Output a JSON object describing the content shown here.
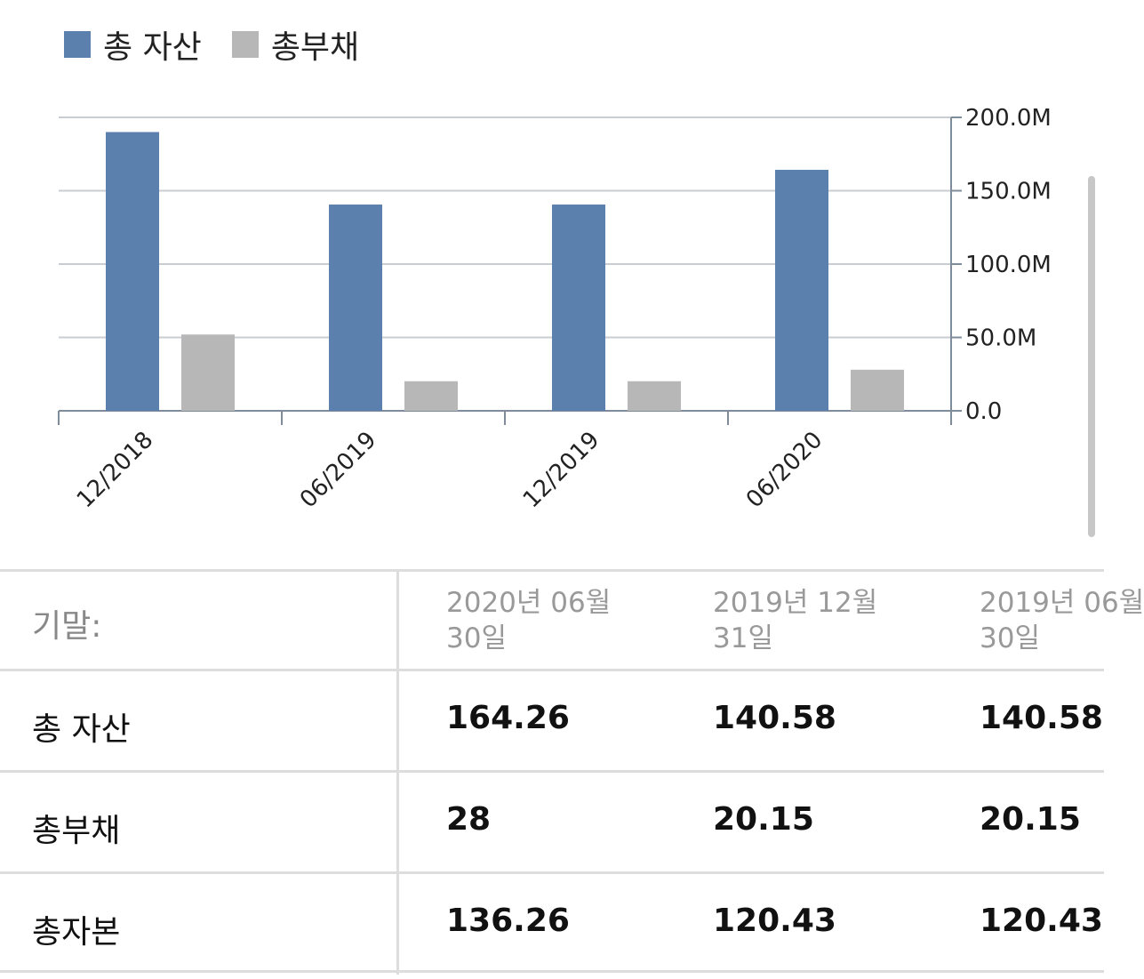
{
  "legend": [
    {
      "label": "총 자산",
      "color": "#5b80ad"
    },
    {
      "label": "총부채",
      "color": "#b7b7b7"
    }
  ],
  "chart_data": {
    "type": "bar",
    "categories": [
      "12/2018",
      "06/2019",
      "12/2019",
      "06/2020"
    ],
    "series": [
      {
        "name": "총 자산",
        "values": [
          190,
          140.58,
          140.58,
          164.26
        ],
        "color": "#5b80ad"
      },
      {
        "name": "총부채",
        "values": [
          52,
          20.15,
          20.15,
          28
        ],
        "color": "#b7b7b7"
      }
    ],
    "ylim": [
      0,
      200
    ],
    "yticks": [
      "0.0",
      "50.0M",
      "100.0M",
      "150.0M",
      "200.0M"
    ],
    "yaxis_side": "right",
    "grid": true,
    "legend_position": "top-left"
  },
  "table": {
    "header_label": "기말:",
    "columns": [
      {
        "line1": "2020년 06월",
        "line2": "30일"
      },
      {
        "line1": "2019년 12월",
        "line2": "31일"
      },
      {
        "line1": "2019년 06월",
        "line2": "30일"
      }
    ],
    "rows": [
      {
        "label": "총 자산",
        "values": [
          "164.26",
          "140.58",
          "140.58"
        ]
      },
      {
        "label": "총부채",
        "values": [
          "28",
          "20.15",
          "20.15"
        ]
      },
      {
        "label": "총자본",
        "values": [
          "136.26",
          "120.43",
          "120.43"
        ]
      }
    ]
  }
}
